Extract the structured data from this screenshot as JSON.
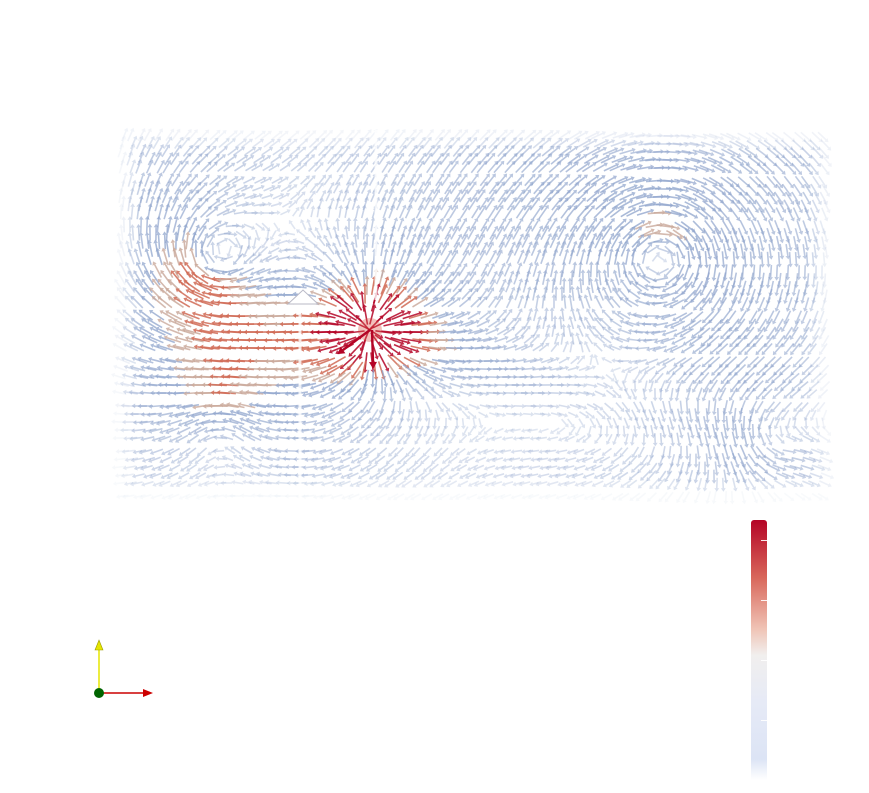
{
  "scene": {
    "background": "#ffffff",
    "visualization": "vector-glyph-field",
    "glyph_shape": "arrow",
    "domain_shape": "rectangle",
    "features": [
      {
        "kind": "vortex",
        "rotation": "counter-clockwise",
        "location": "upper-left",
        "strength": "strong"
      },
      {
        "kind": "vortex",
        "rotation": "counter-clockwise",
        "location": "right-center",
        "strength": "strong"
      },
      {
        "kind": "vortex",
        "rotation": "clockwise",
        "location": "lower-left",
        "strength": "weak"
      },
      {
        "kind": "vortex",
        "rotation": "clockwise",
        "location": "lower-right",
        "strength": "weak"
      },
      {
        "kind": "source",
        "location": "center-left",
        "strength": "high"
      }
    ]
  },
  "colormap": {
    "name": "cool-to-warm",
    "low_color": "#dce4f5",
    "mid_color": "#f1efee",
    "high_color": "#b40426",
    "glyph_base_color": "#8fa4cc",
    "orientation": "vertical"
  },
  "orientation_axes": {
    "x_axis_color": "#cc0000",
    "y_axis_color": "#e6e600",
    "z_axis_color": "#006400",
    "x_icon": "x-axis-arrow-icon",
    "y_icon": "y-axis-arrow-icon",
    "z_icon": "z-axis-dot-icon"
  }
}
